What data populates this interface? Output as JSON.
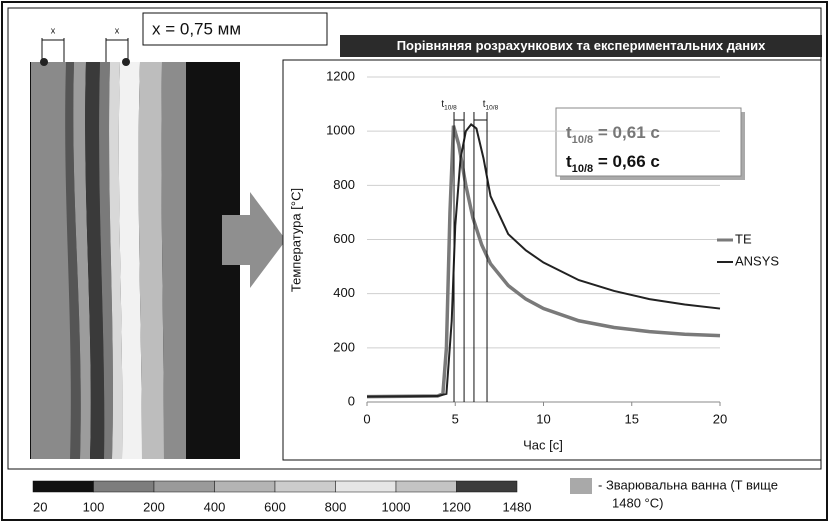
{
  "chart_data": {
    "type": "line",
    "title": "Порівняняя розрахункових та експериментальних даних",
    "xlabel": "Час [с]",
    "ylabel": "Температура [°C]",
    "xlim": [
      0,
      20
    ],
    "ylim": [
      0,
      1200
    ],
    "xticks": [
      0,
      5,
      10,
      15,
      20
    ],
    "yticks": [
      0,
      200,
      400,
      600,
      800,
      1000,
      1200
    ],
    "grid": true,
    "legend": "right",
    "series": [
      {
        "name": "TE",
        "color": "#7a7a7a",
        "x": [
          0,
          4,
          4.3,
          4.5,
          4.7,
          4.9,
          5.2,
          5.6,
          6,
          6.5,
          7,
          8,
          9,
          10,
          12,
          14,
          16,
          18,
          20
        ],
        "values": [
          20,
          22,
          30,
          200,
          700,
          1020,
          950,
          800,
          680,
          580,
          510,
          430,
          380,
          345,
          300,
          275,
          260,
          250,
          245
        ]
      },
      {
        "name": "ANSYS",
        "color": "#222222",
        "x": [
          0,
          4,
          4.5,
          4.8,
          5,
          5.3,
          5.6,
          5.9,
          6.2,
          6.6,
          7,
          8,
          9,
          10,
          12,
          14,
          16,
          18,
          20
        ],
        "values": [
          20,
          22,
          30,
          300,
          650,
          900,
          1000,
          1025,
          1010,
          900,
          760,
          620,
          560,
          515,
          450,
          410,
          380,
          360,
          345
        ]
      }
    ],
    "vlines": [
      4.93,
      5.5,
      6.06,
      6.8
    ],
    "vline_labels": [
      {
        "base": "t",
        "sub": "10/8"
      },
      {
        "base": "t",
        "sub": "10/8"
      }
    ],
    "boxes": [
      {
        "base": "t",
        "sub": "10/8",
        "rest": " = 0,61 с",
        "color": "#777777"
      },
      {
        "base": "t",
        "sub": "10/8",
        "rest": " = 0,66 с",
        "color": "#111111"
      }
    ]
  },
  "image": {
    "scale_label": "x = 0,75 мм",
    "dim_label": "x"
  },
  "colorbar": {
    "values": [
      20,
      100,
      200,
      400,
      600,
      800,
      1000,
      1200,
      1480
    ],
    "colors": [
      "#111111",
      "#7d7d7d",
      "#9a9a9a",
      "#b4b4b4",
      "#cccccc",
      "#e6e6e6",
      "#c4c4c4",
      "#3c3c3c"
    ]
  },
  "legend_note": {
    "color": "#a9a9a9",
    "lines": [
      "- Зварювальна ванна (T вище",
      "1480 °C)"
    ]
  }
}
